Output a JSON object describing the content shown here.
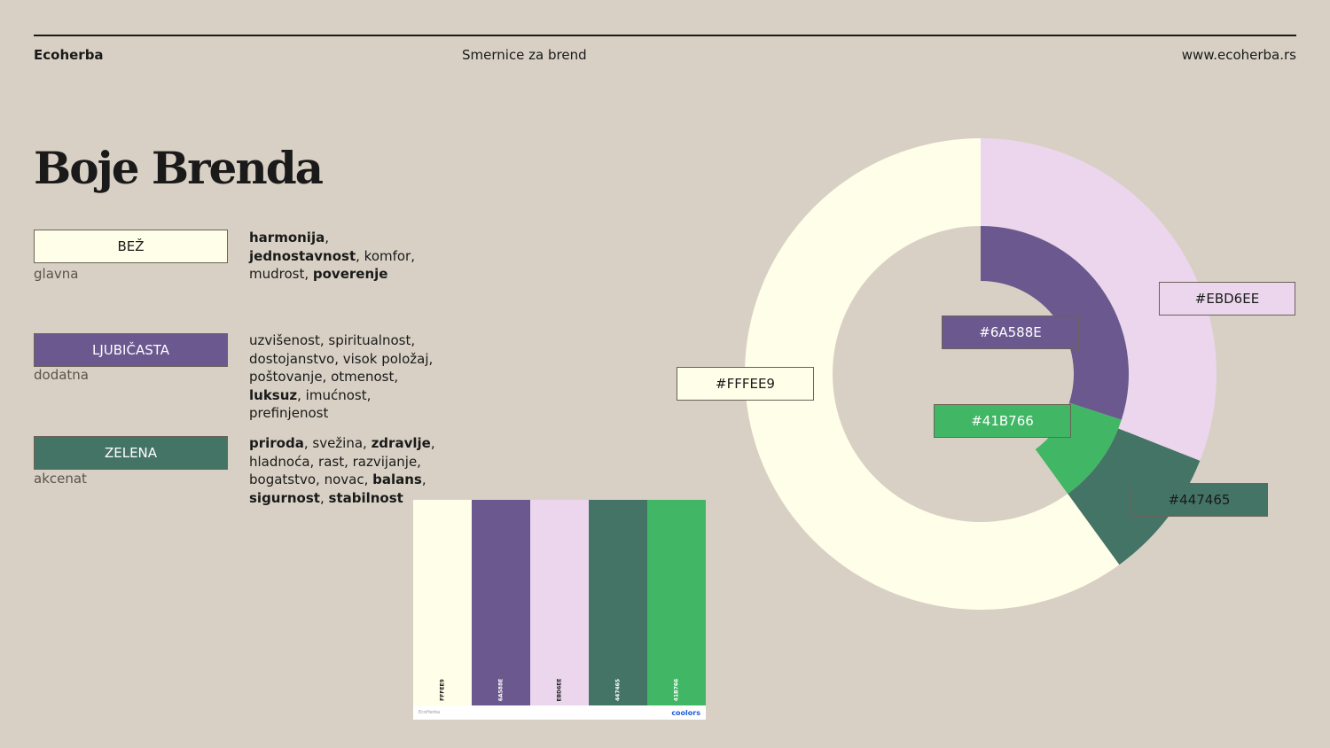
{
  "header": {
    "brand": "Ecoherba",
    "subtitle": "Smernice za brend",
    "url": "www.ecoherba.rs"
  },
  "page_title": "Boje Brenda",
  "colors": [
    {
      "name": "BEŽ",
      "role": "glavna",
      "hex": "#FFFEE9",
      "text_color": "#1a1a1a",
      "desc": [
        {
          "t": "harmonija",
          "b": true
        },
        {
          "t": ", ",
          "b": false
        },
        {
          "t": "jednostavnost",
          "b": true
        },
        {
          "t": ", komfor, mudrost, ",
          "b": false
        },
        {
          "t": "poverenje",
          "b": true
        }
      ]
    },
    {
      "name": "LJUBIČASTA",
      "role": "dodatna",
      "hex": "#6A588E",
      "text_color": "#ffffff",
      "desc": [
        {
          "t": "uzvišenost, spiritualnost, dostojanstvo, visok položaj, poštovanje, otmenost, ",
          "b": false
        },
        {
          "t": "luksuz",
          "b": true
        },
        {
          "t": ", imućnost, prefinjenost",
          "b": false
        }
      ]
    },
    {
      "name": "ZELENA",
      "role": "akcenat",
      "hex": "#447465",
      "text_color": "#ffffff",
      "desc": [
        {
          "t": "priroda",
          "b": true
        },
        {
          "t": ", svežina, ",
          "b": false
        },
        {
          "t": "zdravlje",
          "b": true
        },
        {
          "t": ", hladnoća, rast, razvijanje, bogatstvo, novac, ",
          "b": false
        },
        {
          "t": "balans",
          "b": true
        },
        {
          "t": ", ",
          "b": false
        },
        {
          "t": "sigurnost",
          "b": true
        },
        {
          "t": ", ",
          "b": false
        },
        {
          "t": "stabilnost",
          "b": true
        }
      ]
    }
  ],
  "palette": {
    "strips": [
      {
        "code": "FFFEE9",
        "hex": "#FFFEE9",
        "text_color": "#222222"
      },
      {
        "code": "6A588E",
        "hex": "#6A588E",
        "text_color": "#ffffff"
      },
      {
        "code": "EBD6EE",
        "hex": "#EBD6EE",
        "text_color": "#222222"
      },
      {
        "code": "447465",
        "hex": "#447465",
        "text_color": "#ffffff"
      },
      {
        "code": "41B766",
        "hex": "#41B766",
        "text_color": "#ffffff"
      }
    ],
    "footer_left": "EcoHerba",
    "footer_right": "coolors"
  },
  "chart_data": {
    "type": "pie",
    "rings": [
      {
        "ring": "outer",
        "slices": [
          {
            "label": "#EBD6EE",
            "color": "#EBD6EE",
            "value": 31
          },
          {
            "label": "#447465",
            "color": "#447465",
            "value": 9
          },
          {
            "label": "#FFFEE9",
            "color": "#FFFEE9",
            "value": 60
          }
        ]
      },
      {
        "ring": "inner",
        "slices": [
          {
            "label": "#6A588E",
            "color": "#6A588E",
            "value": 30
          },
          {
            "label": "#41B766",
            "color": "#41B766",
            "value": 10
          }
        ]
      }
    ]
  }
}
